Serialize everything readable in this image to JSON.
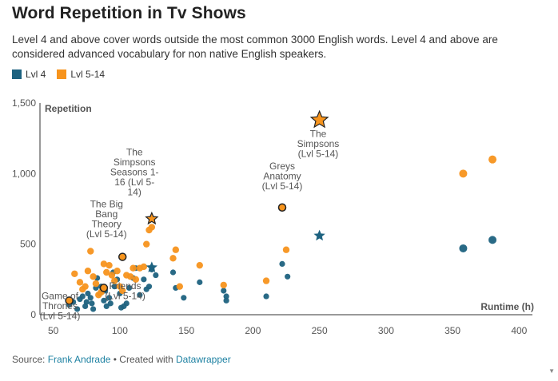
{
  "title": "Word Repetition in Tv Shows",
  "description": "Level 4 and above cover words outside the most common 3000 English words. Level 4 and above are considered advanced vocabulary for non native English speakers.",
  "legend": [
    {
      "label": "Lvl 4",
      "color": "#1d6280"
    },
    {
      "label": "Lvl 5-14",
      "color": "#f7941d"
    }
  ],
  "source": {
    "prefix": "Source: ",
    "author": "Frank Andrade",
    "sep": " • Created with ",
    "tool": "Datawrapper"
  },
  "chart_data": {
    "type": "scatter",
    "xlabel": "Runtime (h)",
    "ylabel": "Repetition",
    "xlim": [
      40,
      410
    ],
    "ylim": [
      0,
      1500
    ],
    "xticks": [
      50,
      100,
      150,
      200,
      250,
      300,
      350,
      400
    ],
    "yticks": [
      0,
      500,
      1000,
      1500
    ],
    "ytick_labels": [
      "0",
      "500",
      "1,000",
      "1,500"
    ],
    "colors": {
      "lvl4": "#1d6280",
      "lvl5": "#f7941d"
    },
    "series": [
      {
        "name": "Lvl 4",
        "points": [
          [
            62,
            70
          ],
          [
            65,
            90
          ],
          [
            68,
            40
          ],
          [
            70,
            110
          ],
          [
            72,
            130
          ],
          [
            74,
            60
          ],
          [
            75,
            90
          ],
          [
            76,
            150
          ],
          [
            78,
            120
          ],
          [
            79,
            80
          ],
          [
            80,
            40
          ],
          [
            82,
            190
          ],
          [
            83,
            260
          ],
          [
            85,
            150
          ],
          [
            86,
            200
          ],
          [
            88,
            100
          ],
          [
            89,
            170
          ],
          [
            90,
            60
          ],
          [
            92,
            120
          ],
          [
            93,
            80
          ],
          [
            95,
            300
          ],
          [
            96,
            200
          ],
          [
            98,
            250
          ],
          [
            100,
            150
          ],
          [
            101,
            50
          ],
          [
            103,
            60
          ],
          [
            105,
            80
          ],
          [
            107,
            190
          ],
          [
            110,
            260
          ],
          [
            112,
            330
          ],
          [
            115,
            140
          ],
          [
            118,
            250
          ],
          [
            120,
            180
          ],
          [
            122,
            200
          ],
          [
            124,
            320
          ],
          [
            127,
            280
          ],
          [
            140,
            300
          ],
          [
            142,
            190
          ],
          [
            148,
            120
          ],
          [
            160,
            230
          ],
          [
            178,
            170
          ],
          [
            180,
            130
          ],
          [
            180,
            100
          ],
          [
            210,
            130
          ],
          [
            222,
            360
          ],
          [
            226,
            270
          ],
          [
            358,
            470
          ],
          [
            380,
            530
          ]
        ]
      },
      {
        "name": "Lvl 5-14",
        "points": [
          [
            66,
            290
          ],
          [
            70,
            230
          ],
          [
            72,
            180
          ],
          [
            74,
            200
          ],
          [
            76,
            310
          ],
          [
            78,
            450
          ],
          [
            80,
            270
          ],
          [
            82,
            220
          ],
          [
            84,
            140
          ],
          [
            86,
            160
          ],
          [
            88,
            360
          ],
          [
            90,
            300
          ],
          [
            92,
            350
          ],
          [
            94,
            280
          ],
          [
            96,
            240
          ],
          [
            98,
            310
          ],
          [
            100,
            200
          ],
          [
            102,
            170
          ],
          [
            105,
            280
          ],
          [
            108,
            270
          ],
          [
            110,
            330
          ],
          [
            112,
            250
          ],
          [
            115,
            330
          ],
          [
            118,
            340
          ],
          [
            120,
            500
          ],
          [
            122,
            600
          ],
          [
            124,
            620
          ],
          [
            140,
            400
          ],
          [
            142,
            460
          ],
          [
            145,
            200
          ],
          [
            160,
            350
          ],
          [
            178,
            210
          ],
          [
            210,
            240
          ],
          [
            225,
            460
          ],
          [
            358,
            1000
          ],
          [
            380,
            1100
          ]
        ]
      }
    ],
    "stars": [
      {
        "name": "The Simpsons Seasons 1-16 (Lvl 4)",
        "series": "Lvl 4",
        "x": 124,
        "y": 335
      },
      {
        "name": "The Simpsons Seasons 1-16 (Lvl 5-14)",
        "series": "Lvl 5-14",
        "x": 124,
        "y": 680
      },
      {
        "name": "The Simpsons (Lvl 4)",
        "series": "Lvl 4",
        "x": 250,
        "y": 560
      },
      {
        "name": "The Simpsons (Lvl 5-14)",
        "series": "Lvl 5-14",
        "x": 250,
        "y": 1380
      }
    ],
    "highlighted": [
      {
        "series": "Lvl 5-14",
        "x": 102,
        "y": 410
      },
      {
        "series": "Lvl 5-14",
        "x": 222,
        "y": 760
      },
      {
        "series": "Lvl 5-14",
        "x": 62,
        "y": 100
      },
      {
        "series": "Lvl 5-14",
        "x": 88,
        "y": 190
      }
    ],
    "annotations": [
      {
        "lines": [
          "The",
          "Simpsons",
          "(Lvl 5-14)"
        ],
        "x": 249,
        "y": 1260
      },
      {
        "lines": [
          "Greys",
          "Anatomy",
          "(Lvl 5-14)"
        ],
        "x": 222,
        "y": 1030
      },
      {
        "lines": [
          "The",
          "Simpsons",
          "Seasons 1-",
          "16 (Lvl 5-",
          "14)"
        ],
        "x": 111,
        "y": 1130
      },
      {
        "lines": [
          "The Big",
          "Bang",
          "Theory",
          "(Lvl 5-14)"
        ],
        "x": 90,
        "y": 760
      },
      {
        "lines": [
          "Friends",
          "(Lvl 5-14)"
        ],
        "x": 104,
        "y": 180
      },
      {
        "lines": [
          "Game of",
          "Thrones",
          "(Lvl 5-14)"
        ],
        "x": 55,
        "y": 110
      }
    ]
  }
}
